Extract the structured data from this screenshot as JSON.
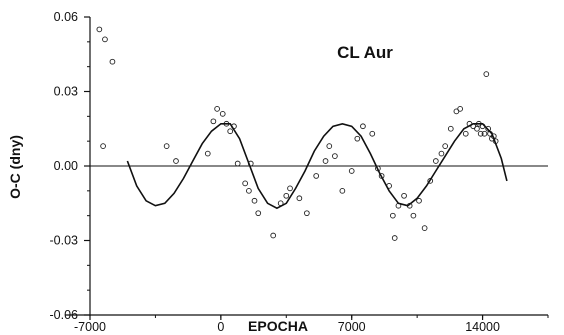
{
  "chart_data": {
    "type": "scatter",
    "title": "CL Aur",
    "xlabel": "EPOCHA",
    "ylabel": "O-C (dny)",
    "xlim": [
      -7000,
      17500
    ],
    "ylim": [
      -0.06,
      0.06
    ],
    "x_ticks": [
      -7000,
      0,
      7000,
      14000
    ],
    "x_tick_labels": [
      "-7000",
      "0",
      "7000",
      "14000"
    ],
    "y_ticks": [
      -0.06,
      -0.03,
      0.0,
      0.03,
      0.06
    ],
    "y_tick_labels": [
      "-0.06",
      "-0.03",
      "0.00",
      "0.03",
      "0.06"
    ],
    "grid": false,
    "zero_line": true,
    "series": [
      {
        "kind": "points",
        "marker": "open-circle",
        "x": [
          -6500,
          -6200,
          -6300,
          -5800,
          -2900,
          -2400,
          -700,
          -400,
          -200,
          100,
          300,
          500,
          700,
          900,
          1300,
          1500,
          1600,
          1800,
          2000,
          2800,
          3200,
          3500,
          3700,
          4200,
          4600,
          5100,
          5600,
          5800,
          6100,
          6500,
          7000,
          7300,
          7600,
          8100,
          8400,
          8600,
          9000,
          9200,
          9300,
          9500,
          9800,
          10100,
          10300,
          10600,
          10900,
          11200,
          11500,
          11800,
          12000,
          12300,
          12600,
          12800,
          13100,
          13300,
          13500,
          13700,
          13800,
          13900,
          14000,
          14100,
          14200,
          14300,
          14400,
          14500,
          14600,
          14700
        ],
        "y": [
          0.055,
          0.051,
          0.008,
          0.042,
          0.008,
          0.002,
          0.005,
          0.018,
          0.023,
          0.021,
          0.017,
          0.014,
          0.016,
          0.001,
          -0.007,
          -0.01,
          0.001,
          -0.014,
          -0.019,
          -0.028,
          -0.015,
          -0.012,
          -0.009,
          -0.013,
          -0.019,
          -0.004,
          0.002,
          0.008,
          0.004,
          -0.01,
          -0.002,
          0.011,
          0.016,
          0.013,
          -0.001,
          -0.004,
          -0.008,
          -0.02,
          -0.029,
          -0.016,
          -0.012,
          -0.016,
          -0.02,
          -0.014,
          -0.025,
          -0.006,
          0.002,
          0.005,
          0.008,
          0.015,
          0.022,
          0.023,
          0.013,
          0.017,
          0.016,
          0.015,
          0.017,
          0.013,
          0.016,
          0.013,
          0.037,
          0.015,
          0.013,
          0.011,
          0.012,
          0.01
        ]
      },
      {
        "kind": "fit",
        "x": [
          -5000,
          -4500,
          -4000,
          -3500,
          -3000,
          -2500,
          -2000,
          -1500,
          -1000,
          -500,
          0,
          500,
          1000,
          1500,
          2000,
          2500,
          3000,
          3500,
          4000,
          4500,
          5000,
          5500,
          6000,
          6500,
          7000,
          7500,
          8000,
          8500,
          9000,
          9500,
          10000,
          10500,
          11000,
          11500,
          12000,
          12500,
          13000,
          13500,
          14000,
          14500,
          15000,
          15300
        ],
        "y": [
          0.002,
          -0.008,
          -0.014,
          -0.016,
          -0.015,
          -0.011,
          -0.005,
          0.002,
          0.009,
          0.014,
          0.017,
          0.017,
          0.011,
          0.001,
          -0.009,
          -0.015,
          -0.017,
          -0.015,
          -0.009,
          -0.002,
          0.006,
          0.012,
          0.016,
          0.017,
          0.016,
          0.012,
          0.005,
          -0.003,
          -0.01,
          -0.015,
          -0.016,
          -0.013,
          -0.008,
          -0.002,
          0.004,
          0.01,
          0.015,
          0.017,
          0.017,
          0.013,
          0.003,
          -0.006
        ]
      }
    ]
  }
}
